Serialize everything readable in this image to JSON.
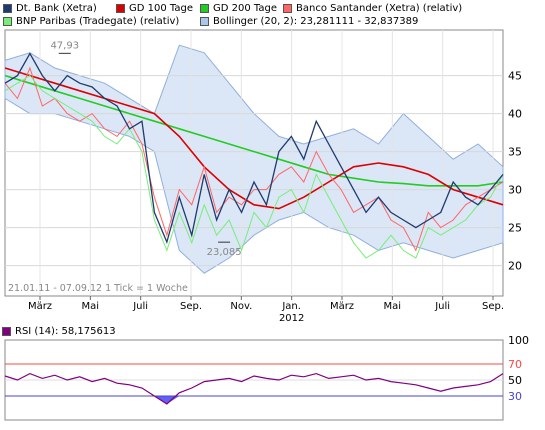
{
  "legend": {
    "items": [
      {
        "label": "Dt. Bank (Xetra)",
        "color": "#1f3a6e"
      },
      {
        "label": "GD 100 Tage",
        "color": "#dd0000"
      },
      {
        "label": "GD 200 Tage",
        "color": "#22cc22"
      },
      {
        "label": "Banco Santander (Xetra) (relativ)",
        "color": "#ff6666"
      },
      {
        "label": "BNP Paribas (Tradegate) (relativ)",
        "color": "#77ee77"
      },
      {
        "label": "Bollinger (20, 2): 23,281111 - 32,837389",
        "color": "#aac6ea"
      }
    ]
  },
  "chart_data": [
    {
      "type": "line",
      "info_text": "21.01.11 - 07.09.12  1 Tick = 1 Woche",
      "x_ticks": [
        "März",
        "Mai",
        "Juli",
        "Sep.",
        "Nov.",
        "Jan.",
        "März",
        "Mai",
        "Juli",
        "Sep."
      ],
      "x_year_label": "2012",
      "y_ticks": [
        20,
        25,
        30,
        35,
        40,
        45
      ],
      "ylim": [
        16,
        51
      ],
      "annotations": [
        {
          "text": "47,93",
          "x": 0.12,
          "y": 47.93
        },
        {
          "text": "23,085",
          "x": 0.44,
          "y": 23.085
        }
      ],
      "series": [
        {
          "name": "Dt. Bank (Xetra)",
          "x": [
            0,
            0.5,
            1,
            1.5,
            2,
            2.5,
            3,
            3.5,
            4,
            4.5,
            5,
            5.5,
            6,
            6.5,
            7,
            7.5,
            8,
            8.5,
            9,
            9.5,
            10,
            10.5,
            11,
            11.5,
            12,
            12.5,
            13,
            13.5,
            14,
            14.5,
            15,
            15.5,
            16,
            16.5,
            17,
            17.5,
            18,
            18.5,
            19,
            19.5,
            20
          ],
          "values": [
            44,
            45,
            47.9,
            45,
            43,
            45,
            44,
            43.5,
            42,
            41,
            38,
            39,
            27,
            23.1,
            29,
            24,
            32,
            26,
            30,
            27,
            31,
            28,
            35,
            37,
            34,
            39,
            36,
            33,
            30,
            27,
            29,
            27,
            26,
            25,
            26,
            27,
            31,
            29,
            28,
            30,
            32
          ]
        },
        {
          "name": "GD 100 Tage",
          "x": [
            0,
            1,
            2,
            3,
            4,
            5,
            6,
            7,
            8,
            9,
            10,
            11,
            12,
            13,
            14,
            15,
            16,
            17,
            18,
            19,
            20
          ],
          "values": [
            46,
            45,
            44,
            43,
            42,
            41,
            40,
            37,
            33,
            30,
            28,
            27.5,
            29,
            31,
            33,
            33.5,
            33,
            32,
            30,
            29,
            28
          ]
        },
        {
          "name": "GD 200 Tage",
          "x": [
            0,
            1,
            2,
            3,
            4,
            5,
            6,
            7,
            8,
            9,
            10,
            11,
            12,
            13,
            14,
            15,
            16,
            17,
            18,
            19,
            20
          ],
          "values": [
            45,
            44,
            43,
            42,
            41,
            40,
            39,
            38,
            37,
            36,
            35,
            34,
            33,
            32,
            31.5,
            31,
            30.8,
            30.5,
            30.5,
            30.5,
            31
          ]
        },
        {
          "name": "Banco Santander (Xetra) (relativ)",
          "x": [
            0,
            0.5,
            1,
            1.5,
            2,
            2.5,
            3,
            3.5,
            4,
            4.5,
            5,
            5.5,
            6,
            6.5,
            7,
            7.5,
            8,
            8.5,
            9,
            9.5,
            10,
            10.5,
            11,
            11.5,
            12,
            12.5,
            13,
            13.5,
            14,
            14.5,
            15,
            15.5,
            16,
            16.5,
            17,
            17.5,
            18,
            18.5,
            19,
            19.5,
            20
          ],
          "values": [
            44,
            42,
            46,
            41,
            42,
            40,
            39,
            40,
            38,
            37,
            39,
            36,
            29,
            24,
            30,
            28,
            33,
            27,
            29,
            28,
            30,
            30,
            32,
            33,
            31,
            35,
            32,
            30,
            27,
            28,
            29,
            26,
            25,
            22,
            27,
            25,
            26,
            28,
            29,
            30,
            31
          ]
        },
        {
          "name": "BNP Paribas (Tradegate) (relativ)",
          "x": [
            0,
            0.5,
            1,
            1.5,
            2,
            2.5,
            3,
            3.5,
            4,
            4.5,
            5,
            5.5,
            6,
            6.5,
            7,
            7.5,
            8,
            8.5,
            9,
            9.5,
            10,
            10.5,
            11,
            11.5,
            12,
            12.5,
            13,
            13.5,
            14,
            14.5,
            15,
            15.5,
            16,
            16.5,
            17,
            17.5,
            18,
            18.5,
            19,
            19.5,
            20
          ],
          "values": [
            43,
            44,
            45,
            43,
            42,
            41,
            40,
            39,
            37,
            36,
            38,
            35,
            26,
            22,
            27,
            23,
            28,
            24,
            26,
            22,
            27,
            25,
            29,
            30,
            27,
            32,
            29,
            26,
            23,
            21,
            22,
            24,
            22,
            21,
            25,
            24,
            25,
            26,
            28,
            29,
            32
          ]
        },
        {
          "name": "Bollinger (20, 2): 23,281111 - 32,837389",
          "type": "area",
          "x": [
            0,
            1,
            2,
            3,
            4,
            5,
            6,
            7,
            8,
            9,
            10,
            11,
            12,
            13,
            14,
            15,
            16,
            17,
            18,
            19,
            20
          ],
          "upper": [
            47,
            48,
            46,
            45,
            44,
            42,
            40,
            49,
            48,
            44,
            40,
            37,
            36,
            37,
            38,
            36,
            40,
            37,
            34,
            36,
            33
          ],
          "lower": [
            42,
            40,
            40,
            39,
            38,
            37,
            35,
            22,
            19,
            21,
            24,
            26,
            27,
            25,
            24,
            22,
            23,
            22,
            21,
            22,
            23
          ]
        }
      ]
    },
    {
      "type": "line",
      "title": "RSI (14): 58,175613",
      "title_color": "#800080",
      "y_ticks": [
        30,
        50,
        70,
        100
      ],
      "ylim": [
        0,
        100
      ],
      "reference_lines": [
        {
          "value": 70,
          "color": "#ff4444"
        },
        {
          "value": 30,
          "color": "#4444cc"
        }
      ],
      "series": [
        {
          "name": "RSI (14): 58,175613",
          "x": [
            0,
            0.5,
            1,
            1.5,
            2,
            2.5,
            3,
            3.5,
            4,
            4.5,
            5,
            5.5,
            6,
            6.5,
            7,
            7.5,
            8,
            8.5,
            9,
            9.5,
            10,
            10.5,
            11,
            11.5,
            12,
            12.5,
            13,
            13.5,
            14,
            14.5,
            15,
            15.5,
            16,
            16.5,
            17,
            17.5,
            18,
            18.5,
            19,
            19.5,
            20
          ],
          "values": [
            55,
            50,
            58,
            52,
            56,
            50,
            54,
            48,
            52,
            46,
            44,
            40,
            30,
            20,
            34,
            40,
            48,
            50,
            52,
            48,
            55,
            52,
            50,
            56,
            54,
            58,
            52,
            54,
            56,
            50,
            52,
            48,
            46,
            44,
            40,
            36,
            40,
            42,
            44,
            48,
            58
          ]
        }
      ]
    }
  ]
}
